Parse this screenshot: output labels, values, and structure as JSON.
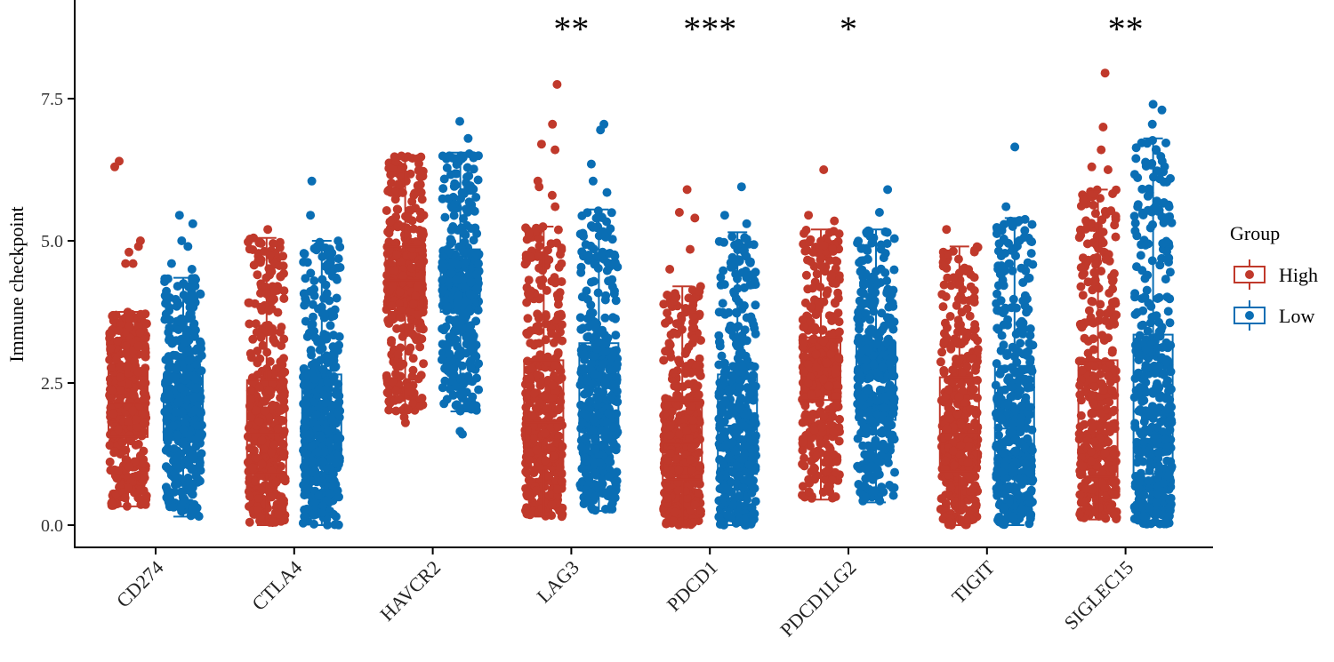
{
  "chart_data": {
    "type": "box-jitter",
    "title": "",
    "xlabel": "",
    "ylabel": "Immune checkpoint",
    "ylim": [
      -0.4,
      9.0
    ],
    "yticks": [
      0.0,
      2.5,
      5.0,
      7.5
    ],
    "ytick_labels": [
      "0.0",
      "2.5",
      "5.0",
      "7.5"
    ],
    "categories": [
      "CD274",
      "CTLA4",
      "HAVCR2",
      "LAG3",
      "PDCD1",
      "PDCD1LG2",
      "TIGIT",
      "SIGLEC15"
    ],
    "significance": [
      "",
      "",
      "",
      "**",
      "***",
      "*",
      "",
      "**"
    ],
    "legend": {
      "title": "Group",
      "position": "right"
    },
    "series": [
      {
        "name": "High",
        "color": "#C0392B",
        "boxes": [
          {
            "min": 0.33,
            "q1": 1.55,
            "median": 2.15,
            "q3": 2.75,
            "max": 3.75,
            "outliers": [
              6.4,
              6.3,
              5.0,
              4.9,
              4.6,
              4.8,
              4.6
            ]
          },
          {
            "min": 0.0,
            "q1": 0.9,
            "median": 1.6,
            "q3": 2.55,
            "max": 5.05,
            "outliers": [
              5.2
            ]
          },
          {
            "min": 2.0,
            "q1": 3.75,
            "median": 4.3,
            "q3": 4.9,
            "max": 6.5,
            "outliers": [
              1.8,
              1.9
            ]
          },
          {
            "min": 0.15,
            "q1": 1.0,
            "median": 1.8,
            "q3": 2.9,
            "max": 5.25,
            "outliers": [
              7.75,
              7.05,
              6.7,
              6.6,
              6.05,
              5.95,
              5.8,
              5.6
            ]
          },
          {
            "min": 0.0,
            "q1": 0.8,
            "median": 1.45,
            "q3": 2.2,
            "max": 4.2,
            "outliers": [
              5.9,
              5.5,
              5.4,
              4.85,
              4.5
            ]
          },
          {
            "min": 0.45,
            "q1": 2.2,
            "median": 2.75,
            "q3": 3.3,
            "max": 5.2,
            "outliers": [
              6.25,
              5.45,
              5.35
            ]
          },
          {
            "min": 0.0,
            "q1": 0.95,
            "median": 1.6,
            "q3": 2.6,
            "max": 4.9,
            "outliers": [
              5.2
            ]
          },
          {
            "min": 0.1,
            "q1": 0.85,
            "median": 1.75,
            "q3": 2.9,
            "max": 5.9,
            "outliers": [
              7.95,
              7.0,
              6.6,
              6.3,
              6.25
            ]
          }
        ]
      },
      {
        "name": "Low",
        "color": "#0A6EB4",
        "boxes": [
          {
            "min": 0.15,
            "q1": 1.5,
            "median": 2.0,
            "q3": 2.65,
            "max": 4.35,
            "outliers": [
              5.45,
              5.3,
              5.0,
              4.9,
              4.6,
              4.5
            ]
          },
          {
            "min": 0.0,
            "q1": 1.1,
            "median": 1.8,
            "q3": 2.65,
            "max": 5.0,
            "outliers": [
              6.05,
              5.45
            ]
          },
          {
            "min": 2.0,
            "q1": 3.75,
            "median": 4.3,
            "q3": 4.85,
            "max": 6.55,
            "outliers": [
              7.1,
              6.8,
              1.6,
              1.65
            ]
          },
          {
            "min": 0.25,
            "q1": 1.55,
            "median": 2.3,
            "q3": 3.2,
            "max": 5.55,
            "outliers": [
              7.05,
              6.95,
              6.35,
              6.05,
              5.85
            ]
          },
          {
            "min": 0.0,
            "q1": 0.9,
            "median": 1.75,
            "q3": 2.65,
            "max": 5.15,
            "outliers": [
              5.95,
              5.45,
              5.3
            ]
          },
          {
            "min": 0.4,
            "q1": 1.85,
            "median": 2.6,
            "q3": 3.2,
            "max": 5.2,
            "outliers": [
              5.9,
              5.5
            ]
          },
          {
            "min": 0.0,
            "q1": 0.95,
            "median": 1.7,
            "q3": 2.8,
            "max": 5.4,
            "outliers": [
              6.65,
              5.6
            ]
          },
          {
            "min": 0.0,
            "q1": 0.9,
            "median": 2.0,
            "q3": 3.35,
            "max": 6.8,
            "outliers": [
              7.4,
              7.3,
              7.05,
              6.4
            ]
          }
        ]
      }
    ]
  }
}
